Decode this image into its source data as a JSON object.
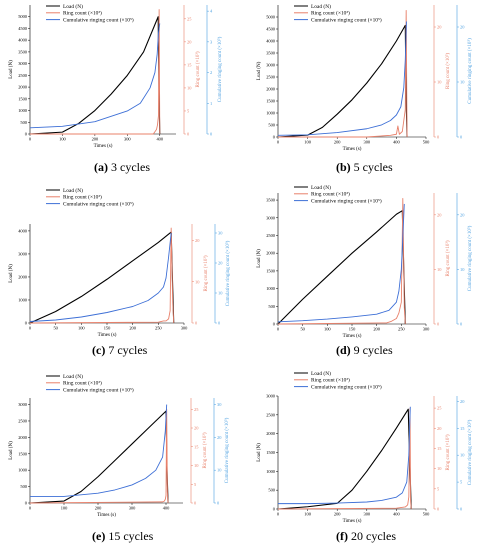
{
  "colors": {
    "load": "#000000",
    "ring": "#e8806a",
    "cum": "#3d6fd6",
    "ring_axis": "#e8806a",
    "cum_axis": "#4a9fe0"
  },
  "legend_labels": {
    "load": "Load (N)",
    "ring": "Ring count (×10³)",
    "cum": "Cumulative ringing count (×10⁵)"
  },
  "axis_labels": {
    "x": "Times (s)",
    "y": "Load (N)",
    "ring": "Ring count (×10³)",
    "cum": "Cumulative ringing count (×10⁵)"
  },
  "chart_data": [
    {
      "type": "line",
      "title_letter": "(a)",
      "title_text": " 3 cycles",
      "xlabel": "Times (s)",
      "ylabel": "Load (N)",
      "xlim": [
        0,
        450
      ],
      "xticks": [
        0,
        100,
        200,
        300,
        400
      ],
      "ylim": [
        0,
        5500
      ],
      "yticks": [
        0,
        500,
        1000,
        1500,
        2000,
        2500,
        3000,
        3500,
        4000,
        4500,
        5000
      ],
      "ring_lim": [
        0,
        28
      ],
      "ring_ticks": [
        0,
        5,
        10,
        15,
        20,
        25
      ],
      "cum_lim": [
        0,
        4.2
      ],
      "cum_ticks": [
        0,
        1,
        2,
        3,
        4
      ],
      "series": [
        {
          "name": "Load (N)",
          "axis": "load",
          "x": [
            0,
            100,
            150,
            200,
            250,
            300,
            350,
            395,
            398,
            400
          ],
          "y": [
            0,
            80,
            450,
            1000,
            1700,
            2500,
            3500,
            5000,
            1500,
            0
          ]
        },
        {
          "name": "Ring count (×10³)",
          "axis": "ring",
          "x": [
            0,
            380,
            385,
            390,
            393,
            396,
            398,
            400
          ],
          "y": [
            0,
            0,
            0.5,
            1,
            2,
            4,
            27,
            0
          ]
        },
        {
          "name": "Cumulative ringing count (×10⁵)",
          "axis": "cum",
          "x": [
            0,
            100,
            200,
            300,
            340,
            370,
            385,
            392,
            396,
            400
          ],
          "y": [
            0.2,
            0.25,
            0.4,
            0.75,
            1.0,
            1.5,
            2.0,
            2.6,
            3.3,
            3.6
          ]
        }
      ]
    },
    {
      "type": "line",
      "title_letter": "(b)",
      "title_text": " 5 cycles",
      "xlabel": "Times (s)",
      "ylabel": "Load (N)",
      "xlim": [
        0,
        500
      ],
      "xticks": [
        0,
        100,
        200,
        300,
        400,
        500
      ],
      "ylim": [
        0,
        5500
      ],
      "yticks": [
        0,
        500,
        1000,
        1500,
        2000,
        2500,
        3000,
        3500,
        4000,
        4500,
        5000
      ],
      "ring_lim": [
        0,
        24
      ],
      "ring_ticks": [
        0,
        10,
        20
      ],
      "cum_lim": [
        0,
        24
      ],
      "cum_ticks": [
        0,
        10,
        20
      ],
      "series": [
        {
          "name": "Load (N)",
          "axis": "load",
          "x": [
            0,
            100,
            150,
            200,
            250,
            300,
            350,
            400,
            430,
            433,
            436
          ],
          "y": [
            0,
            80,
            400,
            950,
            1550,
            2250,
            3050,
            4000,
            4650,
            1500,
            0
          ]
        },
        {
          "name": "Ring count (×10³)",
          "axis": "ring",
          "x": [
            0,
            300,
            380,
            400,
            405,
            410,
            420,
            425,
            430,
            433,
            436
          ],
          "y": [
            0,
            0,
            0.3,
            0.5,
            2,
            0.5,
            1,
            3,
            5,
            23,
            0
          ]
        },
        {
          "name": "Cumulative ringing count (×10⁵)",
          "axis": "cum",
          "x": [
            0,
            100,
            200,
            300,
            350,
            380,
            400,
            415,
            425,
            430,
            434
          ],
          "y": [
            0.3,
            0.4,
            0.8,
            1.5,
            2.2,
            3.0,
            4.0,
            5.5,
            9,
            14,
            21
          ]
        }
      ]
    },
    {
      "type": "line",
      "title_letter": "(c)",
      "title_text": " 7 cycles",
      "xlabel": "Times (s)",
      "ylabel": "Load (N)",
      "xlim": [
        0,
        300
      ],
      "xticks": [
        0,
        50,
        100,
        150,
        200,
        250,
        300
      ],
      "ylim": [
        0,
        4300
      ],
      "yticks": [
        0,
        1000,
        2000,
        3000,
        4000
      ],
      "ring_lim": [
        0,
        24
      ],
      "ring_ticks": [
        0,
        10,
        20
      ],
      "cum_lim": [
        0,
        33
      ],
      "cum_ticks": [
        0,
        10,
        20,
        30
      ],
      "series": [
        {
          "name": "Load (N)",
          "axis": "load",
          "x": [
            0,
            50,
            100,
            150,
            200,
            250,
            275,
            278,
            280
          ],
          "y": [
            0,
            500,
            1150,
            1900,
            2700,
            3500,
            3950,
            1500,
            0
          ]
        },
        {
          "name": "Ring count (×10³)",
          "axis": "ring",
          "x": [
            0,
            250,
            260,
            265,
            270,
            273,
            275,
            278,
            280
          ],
          "y": [
            0,
            0.2,
            0.5,
            0.5,
            1,
            3,
            23,
            5,
            0
          ]
        },
        {
          "name": "Cumulative ringing count (×10⁵)",
          "axis": "cum",
          "x": [
            0,
            50,
            100,
            150,
            200,
            230,
            250,
            260,
            265,
            270,
            275
          ],
          "y": [
            0.5,
            1,
            2,
            3.5,
            5.5,
            7.5,
            10,
            12,
            15,
            22,
            30
          ]
        }
      ]
    },
    {
      "type": "line",
      "title_letter": "(d)",
      "title_text": " 9 cycles",
      "xlabel": "Times (s)",
      "ylabel": "Load (N)",
      "xlim": [
        0,
        300
      ],
      "xticks": [
        0,
        50,
        100,
        150,
        200,
        250,
        300
      ],
      "ylim": [
        0,
        3700
      ],
      "yticks": [
        0,
        500,
        1000,
        1500,
        2000,
        2500,
        3000,
        3500
      ],
      "ring_lim": [
        0,
        24
      ],
      "ring_ticks": [
        0,
        10,
        20
      ],
      "cum_lim": [
        0,
        24
      ],
      "cum_ticks": [
        0,
        10,
        20
      ],
      "series": [
        {
          "name": "Load (N)",
          "axis": "load",
          "x": [
            0,
            50,
            100,
            150,
            200,
            240,
            252,
            255,
            258
          ],
          "y": [
            0,
            700,
            1350,
            2000,
            2600,
            3100,
            3200,
            1500,
            0
          ]
        },
        {
          "name": "Ring count (×10³)",
          "axis": "ring",
          "x": [
            0,
            220,
            230,
            240,
            245,
            250,
            253,
            256,
            258
          ],
          "y": [
            0,
            0.2,
            0.5,
            1,
            2,
            4,
            23,
            3,
            0
          ]
        },
        {
          "name": "Cumulative ringing count (×10⁵)",
          "axis": "cum",
          "x": [
            0,
            50,
            100,
            150,
            200,
            225,
            240,
            245,
            250,
            253,
            256
          ],
          "y": [
            0.4,
            0.6,
            0.9,
            1.3,
            1.8,
            2.5,
            4,
            6,
            10,
            16,
            22
          ]
        }
      ]
    },
    {
      "type": "line",
      "title_letter": "(e)",
      "title_text": " 15 cycles",
      "xlabel": "Times (s)",
      "ylabel": "Load (N)",
      "xlim": [
        0,
        450
      ],
      "xticks": [
        0,
        100,
        200,
        300,
        400
      ],
      "ylim": [
        0,
        3200
      ],
      "yticks": [
        0,
        500,
        1000,
        1500,
        2000,
        2500,
        3000
      ],
      "ring_lim": [
        0,
        28
      ],
      "ring_ticks": [
        0,
        5,
        10,
        15,
        20,
        25
      ],
      "cum_lim": [
        0,
        32
      ],
      "cum_ticks": [
        0,
        10,
        20,
        30
      ],
      "series": [
        {
          "name": "Load (N)",
          "axis": "load",
          "x": [
            0,
            100,
            150,
            200,
            250,
            300,
            350,
            400,
            403,
            406
          ],
          "y": [
            0,
            60,
            350,
            800,
            1300,
            1800,
            2300,
            2800,
            1000,
            0
          ]
        },
        {
          "name": "Ring count (×10³)",
          "axis": "ring",
          "x": [
            0,
            390,
            395,
            398,
            400,
            402,
            404,
            406
          ],
          "y": [
            0,
            0.3,
            0.5,
            1,
            2,
            25,
            3,
            0
          ]
        },
        {
          "name": "Cumulative ringing count (×10⁵)",
          "axis": "cum",
          "x": [
            0,
            100,
            200,
            250,
            300,
            340,
            370,
            390,
            398,
            402
          ],
          "y": [
            2,
            2,
            3,
            4,
            5.5,
            7.5,
            10,
            14,
            22,
            30
          ]
        }
      ]
    },
    {
      "type": "line",
      "title_letter": "(f)",
      "title_text": " 20 cycles",
      "xlabel": "Times (s)",
      "ylabel": "Load (N)",
      "xlim": [
        0,
        500
      ],
      "xticks": [
        0,
        100,
        200,
        300,
        400,
        500
      ],
      "ylim": [
        0,
        3000
      ],
      "yticks": [
        0,
        500,
        1000,
        1500,
        2000,
        2500,
        3000
      ],
      "ring_lim": [
        0,
        28
      ],
      "ring_ticks": [
        0,
        5,
        10,
        15,
        20,
        25
      ],
      "cum_lim": [
        0,
        21
      ],
      "cum_ticks": [
        0,
        5,
        10,
        15,
        20
      ],
      "series": [
        {
          "name": "Load (N)",
          "axis": "load",
          "x": [
            0,
            100,
            200,
            250,
            300,
            350,
            400,
            440,
            447,
            450
          ],
          "y": [
            0,
            60,
            150,
            500,
            1000,
            1550,
            2150,
            2650,
            800,
            0
          ]
        },
        {
          "name": "Ring count (×10³)",
          "axis": "ring",
          "x": [
            0,
            400,
            430,
            438,
            442,
            446,
            448,
            450
          ],
          "y": [
            0,
            0.2,
            0.5,
            1,
            3,
            25,
            2,
            0
          ]
        },
        {
          "name": "Cumulative ringing count (×10⁵)",
          "axis": "cum",
          "x": [
            0,
            100,
            200,
            300,
            350,
            400,
            420,
            435,
            442,
            447
          ],
          "y": [
            1,
            1,
            1.1,
            1.3,
            1.6,
            2.2,
            3,
            5,
            10,
            19
          ]
        }
      ]
    }
  ]
}
